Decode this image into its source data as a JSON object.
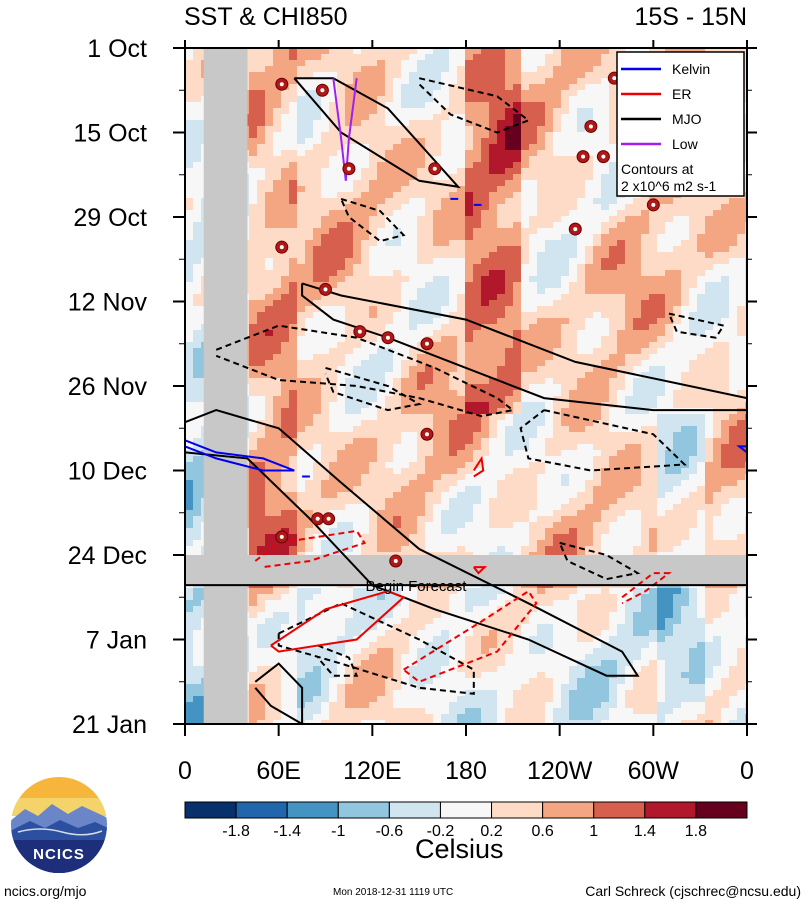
{
  "header": {
    "title_left": "SST & CHI850",
    "title_right": "15S - 15N"
  },
  "chart_data": {
    "type": "heatmap",
    "title": "SST & CHI850",
    "subtitle": "15S - 15N",
    "xlabel": "",
    "ylabel": "",
    "x_ticks": [
      "0",
      "60E",
      "120E",
      "180",
      "120W",
      "60W",
      "0"
    ],
    "x_tick_values": [
      0,
      60,
      120,
      180,
      240,
      300,
      360
    ],
    "xlim": [
      0,
      360
    ],
    "y_ticks": [
      "1 Oct",
      "15 Oct",
      "29 Oct",
      "12 Nov",
      "26 Nov",
      "10 Dec",
      "24 Dec",
      "7 Jan",
      "21 Jan"
    ],
    "y_tick_values": [
      0,
      14,
      28,
      42,
      56,
      70,
      84,
      98,
      112
    ],
    "ylim": [
      0,
      112
    ],
    "forecast_label": "Begin Forecast",
    "forecast_start_day": 89,
    "land_mask_lon": [
      12,
      40
    ],
    "missing_days": [
      84,
      89
    ],
    "legend": {
      "position": "top-right",
      "entries": [
        {
          "name": "Kelvin",
          "color": "#0000ee"
        },
        {
          "name": "ER",
          "color": "#ee0000"
        },
        {
          "name": "MJO",
          "color": "#000000"
        },
        {
          "name": "Low",
          "color": "#a020f0"
        }
      ],
      "note_line1": "Contours at",
      "note_line2": "2 x10^6 m2 s-1"
    },
    "colorbar": {
      "unit": "Celsius",
      "tick_labels": [
        "-1.8",
        "-1.4",
        "-1",
        "-0.6",
        "-0.2",
        "0.2",
        "0.6",
        "1",
        "1.4",
        "1.8"
      ],
      "boundaries": [
        -1.8,
        -1.4,
        -1.0,
        -0.6,
        -0.2,
        0.2,
        0.6,
        1.0,
        1.4,
        1.8
      ],
      "colors": [
        "#08306b",
        "#2166ac",
        "#4393c3",
        "#92c5de",
        "#d1e5f0",
        "#f7f7f7",
        "#fddbc7",
        "#f4a582",
        "#d6604d",
        "#b2182b",
        "#67001f"
      ]
    },
    "contours": [
      {
        "type": "MJO",
        "sign": "positive",
        "points": [
          [
            70,
            5
          ],
          [
            100,
            14
          ],
          [
            150,
            22
          ],
          [
            175,
            23
          ],
          [
            130,
            10
          ],
          [
            95,
            5
          ],
          [
            70,
            5
          ]
        ]
      },
      {
        "type": "MJO",
        "sign": "negative",
        "points": [
          [
            150,
            5
          ],
          [
            200,
            8
          ],
          [
            220,
            12
          ],
          [
            200,
            14
          ],
          [
            170,
            11
          ],
          [
            150,
            6
          ]
        ]
      },
      {
        "type": "MJO",
        "sign": "negative",
        "points": [
          [
            100,
            25
          ],
          [
            125,
            27
          ],
          [
            140,
            31
          ],
          [
            125,
            32
          ],
          [
            105,
            28
          ],
          [
            100,
            25
          ]
        ]
      },
      {
        "type": "MJO",
        "sign": "positive",
        "points": [
          [
            75,
            39
          ],
          [
            100,
            41
          ],
          [
            180,
            45
          ],
          [
            250,
            52
          ],
          [
            360,
            58
          ],
          [
            360,
            60
          ],
          [
            300,
            60
          ],
          [
            230,
            58
          ],
          [
            180,
            53
          ],
          [
            130,
            48
          ],
          [
            95,
            45
          ],
          [
            75,
            41
          ],
          [
            75,
            39
          ]
        ]
      },
      {
        "type": "MJO",
        "sign": "negative",
        "points": [
          [
            20,
            50
          ],
          [
            60,
            46
          ],
          [
            110,
            48
          ],
          [
            160,
            53
          ],
          [
            200,
            58
          ],
          [
            210,
            60
          ],
          [
            190,
            61
          ],
          [
            150,
            58
          ],
          [
            110,
            56
          ],
          [
            60,
            55
          ],
          [
            20,
            51
          ]
        ]
      },
      {
        "type": "MJO",
        "sign": "negative",
        "points": [
          [
            90,
            53
          ],
          [
            130,
            56
          ],
          [
            150,
            59
          ],
          [
            130,
            60
          ],
          [
            95,
            57
          ],
          [
            90,
            54
          ]
        ]
      },
      {
        "type": "MJO",
        "sign": "negative",
        "points": [
          [
            230,
            60
          ],
          [
            300,
            64
          ],
          [
            320,
            69
          ],
          [
            260,
            70
          ],
          [
            220,
            68
          ],
          [
            215,
            63
          ],
          [
            230,
            60
          ]
        ]
      },
      {
        "type": "MJO",
        "sign": "negative",
        "points": [
          [
            310,
            44
          ],
          [
            345,
            46
          ],
          [
            340,
            48
          ],
          [
            315,
            47
          ],
          [
            310,
            44
          ]
        ]
      },
      {
        "type": "MJO",
        "sign": "positive",
        "points": [
          [
            0,
            62
          ],
          [
            20,
            60
          ],
          [
            60,
            63
          ],
          [
            100,
            72
          ],
          [
            150,
            83
          ],
          [
            220,
            92
          ],
          [
            280,
            100
          ],
          [
            290,
            104
          ],
          [
            270,
            104
          ],
          [
            220,
            98
          ],
          [
            160,
            93
          ],
          [
            120,
            89
          ],
          [
            80,
            78
          ],
          [
            40,
            68
          ],
          [
            0,
            67
          ]
        ]
      },
      {
        "type": "MJO",
        "sign": "negative",
        "points": [
          [
            60,
            97
          ],
          [
            100,
            92
          ],
          [
            150,
            98
          ],
          [
            185,
            103
          ],
          [
            185,
            107
          ],
          [
            150,
            106
          ],
          [
            100,
            102
          ],
          [
            60,
            99
          ],
          [
            60,
            97
          ]
        ]
      },
      {
        "type": "MJO",
        "sign": "negative",
        "points": [
          [
            85,
            99
          ],
          [
            105,
            101
          ],
          [
            110,
            104
          ],
          [
            95,
            104
          ],
          [
            85,
            101
          ]
        ]
      },
      {
        "type": "MJO",
        "sign": "negative",
        "points": [
          [
            240,
            82
          ],
          [
            270,
            84
          ],
          [
            290,
            87
          ],
          [
            270,
            88
          ],
          [
            245,
            85
          ],
          [
            240,
            82
          ]
        ]
      },
      {
        "type": "MJO",
        "sign": "positive",
        "points": [
          [
            45,
            105
          ],
          [
            60,
            102
          ],
          [
            75,
            106
          ],
          [
            75,
            112
          ],
          [
            55,
            109
          ],
          [
            45,
            106
          ]
        ]
      },
      {
        "type": "ER",
        "sign": "negative",
        "points": [
          [
            45,
            85
          ],
          [
            60,
            82
          ],
          [
            110,
            80
          ],
          [
            115,
            82
          ],
          [
            80,
            85
          ],
          [
            50,
            86
          ]
        ]
      },
      {
        "type": "ER",
        "sign": "positive",
        "points": [
          [
            55,
            99
          ],
          [
            90,
            93
          ],
          [
            130,
            90
          ],
          [
            140,
            91
          ],
          [
            110,
            98
          ],
          [
            60,
            100
          ],
          [
            55,
            99
          ]
        ]
      },
      {
        "type": "ER",
        "sign": "negative",
        "points": [
          [
            140,
            103
          ],
          [
            190,
            95
          ],
          [
            220,
            90
          ],
          [
            225,
            92
          ],
          [
            200,
            100
          ],
          [
            150,
            105
          ],
          [
            140,
            103
          ]
        ]
      },
      {
        "type": "ER",
        "sign": "negative",
        "points": [
          [
            280,
            91
          ],
          [
            300,
            87
          ],
          [
            310,
            87
          ],
          [
            295,
            90
          ],
          [
            280,
            92
          ]
        ]
      },
      {
        "type": "ER",
        "sign": "positive",
        "points": [
          [
            185,
            70
          ],
          [
            190,
            68
          ],
          [
            191,
            70
          ],
          [
            185,
            71
          ]
        ]
      },
      {
        "type": "ER",
        "sign": "positive",
        "points": [
          [
            185,
            86
          ],
          [
            192,
            86
          ],
          [
            188,
            87
          ],
          [
            185,
            86
          ]
        ]
      },
      {
        "type": "Kelvin",
        "sign": "positive",
        "points": [
          [
            0,
            65
          ],
          [
            20,
            67
          ],
          [
            50,
            68
          ],
          [
            70,
            70
          ],
          [
            50,
            70
          ],
          [
            20,
            68
          ],
          [
            0,
            66
          ]
        ]
      },
      {
        "type": "Kelvin",
        "sign": "positive",
        "points": [
          [
            360,
            66
          ],
          [
            355,
            66
          ],
          [
            360,
            67
          ]
        ]
      },
      {
        "type": "Kelvin",
        "sign": "positive",
        "points": [
          [
            170,
            25
          ],
          [
            175,
            25
          ]
        ]
      },
      {
        "type": "Kelvin",
        "sign": "positive",
        "points": [
          [
            185,
            26
          ],
          [
            190,
            26
          ]
        ]
      },
      {
        "type": "Kelvin",
        "sign": "positive",
        "points": [
          [
            75,
            71
          ],
          [
            80,
            71
          ]
        ]
      },
      {
        "type": "Low",
        "sign": "positive",
        "points": [
          [
            95,
            5
          ],
          [
            100,
            15
          ],
          [
            103,
            22
          ],
          [
            105,
            15
          ],
          [
            110,
            5
          ]
        ]
      }
    ],
    "storms": [
      [
        62,
        6
      ],
      [
        88,
        7
      ],
      [
        105,
        20
      ],
      [
        160,
        20
      ],
      [
        260,
        13
      ],
      [
        255,
        18
      ],
      [
        268,
        18
      ],
      [
        300,
        26
      ],
      [
        250,
        30
      ],
      [
        62,
        33
      ],
      [
        90,
        40
      ],
      [
        112,
        47
      ],
      [
        130,
        48
      ],
      [
        155,
        49
      ],
      [
        155,
        64
      ],
      [
        85,
        78
      ],
      [
        92,
        78
      ],
      [
        62,
        81
      ],
      [
        135,
        85
      ],
      [
        275,
        5
      ]
    ]
  },
  "colorbar": {
    "unit": "Celsius",
    "labels": [
      "-1.8",
      "-1.4",
      "-1",
      "-0.6",
      "-0.2",
      "0.2",
      "0.6",
      "1",
      "1.4",
      "1.8"
    ]
  },
  "footer": {
    "left": "ncics.org/mjo",
    "center": "Mon 2018-12-31 1119 UTC",
    "right": "Carl Schreck (cjschrec@ncsu.edu)"
  },
  "logo": {
    "text": "NCICS"
  }
}
